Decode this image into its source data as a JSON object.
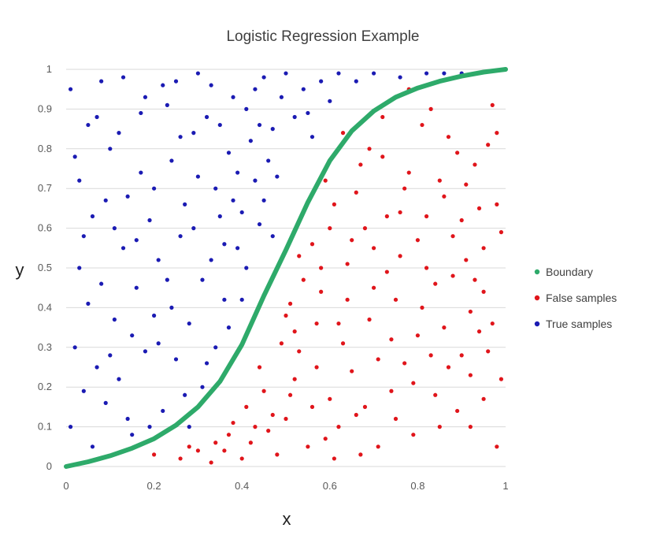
{
  "chart_data": {
    "type": "scatter",
    "title": "Logistic Regression Example",
    "xlabel": "x",
    "ylabel": "y",
    "xlim": [
      0,
      1
    ],
    "ylim": [
      0,
      1
    ],
    "grid": "horizontal",
    "legend": "right",
    "x_ticks": [
      "0",
      "0.2",
      "0.4",
      "0.6",
      "0.8",
      "1"
    ],
    "y_ticks": [
      "0",
      "0.1",
      "0.2",
      "0.3",
      "0.4",
      "0.5",
      "0.6",
      "0.7",
      "0.8",
      "0.9",
      "1"
    ],
    "series": [
      {
        "name": "Boundary",
        "kind": "line",
        "color": "#2eaa6a",
        "x": [
          0,
          0.05,
          0.1,
          0.15,
          0.2,
          0.25,
          0.3,
          0.35,
          0.4,
          0.45,
          0.5,
          0.55,
          0.6,
          0.65,
          0.7,
          0.75,
          0.8,
          0.85,
          0.9,
          0.95,
          1
        ],
        "y": [
          0,
          0.012,
          0.027,
          0.046,
          0.07,
          0.104,
          0.15,
          0.214,
          0.307,
          0.43,
          0.545,
          0.665,
          0.77,
          0.845,
          0.895,
          0.93,
          0.953,
          0.97,
          0.983,
          0.993,
          1
        ]
      },
      {
        "name": "False samples",
        "kind": "scatter",
        "color": "#e0151b",
        "points": [
          [
            0.61,
            0.02
          ],
          [
            0.68,
            0.15
          ],
          [
            0.75,
            0.42
          ],
          [
            0.82,
            0.63
          ],
          [
            0.9,
            0.28
          ],
          [
            0.96,
            0.81
          ],
          [
            0.55,
            0.05
          ],
          [
            0.63,
            0.31
          ],
          [
            0.7,
            0.55
          ],
          [
            0.78,
            0.74
          ],
          [
            0.85,
            0.1
          ],
          [
            0.93,
            0.47
          ],
          [
            0.98,
            0.66
          ],
          [
            0.52,
            0.22
          ],
          [
            0.58,
            0.44
          ],
          [
            0.66,
            0.69
          ],
          [
            0.72,
            0.88
          ],
          [
            0.8,
            0.33
          ],
          [
            0.88,
            0.58
          ],
          [
            0.95,
            0.17
          ],
          [
            0.5,
            0.12
          ],
          [
            0.57,
            0.36
          ],
          [
            0.64,
            0.51
          ],
          [
            0.71,
            0.05
          ],
          [
            0.77,
            0.26
          ],
          [
            0.84,
            0.46
          ],
          [
            0.91,
            0.71
          ],
          [
            0.97,
            0.91
          ],
          [
            0.46,
            0.09
          ],
          [
            0.53,
            0.29
          ],
          [
            0.6,
            0.6
          ],
          [
            0.67,
            0.76
          ],
          [
            0.74,
            0.19
          ],
          [
            0.81,
            0.4
          ],
          [
            0.87,
            0.83
          ],
          [
            0.94,
            0.34
          ],
          [
            0.99,
            0.22
          ],
          [
            0.42,
            0.06
          ],
          [
            0.49,
            0.31
          ],
          [
            0.56,
            0.56
          ],
          [
            0.62,
            0.1
          ],
          [
            0.69,
            0.37
          ],
          [
            0.76,
            0.64
          ],
          [
            0.83,
            0.9
          ],
          [
            0.89,
            0.14
          ],
          [
            0.95,
            0.55
          ],
          [
            0.38,
            0.11
          ],
          [
            0.45,
            0.19
          ],
          [
            0.51,
            0.41
          ],
          [
            0.59,
            0.72
          ],
          [
            0.65,
            0.24
          ],
          [
            0.73,
            0.49
          ],
          [
            0.79,
            0.08
          ],
          [
            0.86,
            0.68
          ],
          [
            0.92,
            0.39
          ],
          [
            0.98,
            0.05
          ],
          [
            0.34,
            0.06
          ],
          [
            0.41,
            0.15
          ],
          [
            0.48,
            0.03
          ],
          [
            0.54,
            0.47
          ],
          [
            0.61,
            0.66
          ],
          [
            0.67,
            0.03
          ],
          [
            0.74,
            0.32
          ],
          [
            0.8,
            0.57
          ],
          [
            0.87,
            0.25
          ],
          [
            0.93,
            0.76
          ],
          [
            0.3,
            0.04
          ],
          [
            0.37,
            0.08
          ],
          [
            0.44,
            0.25
          ],
          [
            0.5,
            0.38
          ],
          [
            0.57,
            0.25
          ],
          [
            0.63,
            0.84
          ],
          [
            0.7,
            0.45
          ],
          [
            0.77,
            0.7
          ],
          [
            0.84,
            0.18
          ],
          [
            0.9,
            0.62
          ],
          [
            0.96,
            0.29
          ],
          [
            0.26,
            0.02
          ],
          [
            0.33,
            0.01
          ],
          [
            0.4,
            0.02
          ],
          [
            0.47,
            0.13
          ],
          [
            0.53,
            0.53
          ],
          [
            0.6,
            0.17
          ],
          [
            0.68,
            0.6
          ],
          [
            0.75,
            0.12
          ],
          [
            0.82,
            0.5
          ],
          [
            0.89,
            0.79
          ],
          [
            0.95,
            0.44
          ],
          [
            0.2,
            0.03
          ],
          [
            0.28,
            0.05
          ],
          [
            0.36,
            0.04
          ],
          [
            0.43,
            0.1
          ],
          [
            0.51,
            0.18
          ],
          [
            0.58,
            0.5
          ],
          [
            0.64,
            0.42
          ],
          [
            0.72,
            0.78
          ],
          [
            0.79,
            0.21
          ],
          [
            0.86,
            0.35
          ],
          [
            0.92,
            0.1
          ],
          [
            0.99,
            0.59
          ],
          [
            0.66,
            0.13
          ],
          [
            0.73,
            0.63
          ],
          [
            0.81,
            0.86
          ],
          [
            0.88,
            0.48
          ],
          [
            0.94,
            0.65
          ],
          [
            0.56,
            0.15
          ],
          [
            0.62,
            0.36
          ],
          [
            0.69,
            0.8
          ],
          [
            0.76,
            0.53
          ],
          [
            0.83,
            0.28
          ],
          [
            0.91,
            0.52
          ],
          [
            0.97,
            0.36
          ],
          [
            0.52,
            0.34
          ],
          [
            0.59,
            0.07
          ],
          [
            0.65,
            0.57
          ],
          [
            0.71,
            0.27
          ],
          [
            0.78,
            0.95
          ],
          [
            0.85,
            0.72
          ],
          [
            0.92,
            0.23
          ],
          [
            0.98,
            0.84
          ]
        ]
      },
      {
        "name": "True samples",
        "kind": "scatter",
        "color": "#1b1bb3",
        "points": [
          [
            0.01,
            0.95
          ],
          [
            0.03,
            0.72
          ],
          [
            0.05,
            0.41
          ],
          [
            0.07,
            0.88
          ],
          [
            0.09,
            0.16
          ],
          [
            0.11,
            0.6
          ],
          [
            0.13,
            0.98
          ],
          [
            0.15,
            0.33
          ],
          [
            0.17,
            0.74
          ],
          [
            0.19,
            0.1
          ],
          [
            0.21,
            0.52
          ],
          [
            0.23,
            0.91
          ],
          [
            0.25,
            0.27
          ],
          [
            0.27,
            0.66
          ],
          [
            0.29,
            0.84
          ],
          [
            0.31,
            0.47
          ],
          [
            0.33,
            0.96
          ],
          [
            0.35,
            0.63
          ],
          [
            0.37,
            0.79
          ],
          [
            0.39,
            0.55
          ],
          [
            0.41,
            0.9
          ],
          [
            0.43,
            0.72
          ],
          [
            0.45,
            0.98
          ],
          [
            0.47,
            0.85
          ],
          [
            0.49,
            0.93
          ],
          [
            0.02,
            0.3
          ],
          [
            0.04,
            0.58
          ],
          [
            0.06,
            0.05
          ],
          [
            0.08,
            0.46
          ],
          [
            0.1,
            0.8
          ],
          [
            0.12,
            0.22
          ],
          [
            0.14,
            0.68
          ],
          [
            0.16,
            0.45
          ],
          [
            0.18,
            0.93
          ],
          [
            0.2,
            0.38
          ],
          [
            0.22,
            0.14
          ],
          [
            0.24,
            0.77
          ],
          [
            0.26,
            0.58
          ],
          [
            0.28,
            0.36
          ],
          [
            0.3,
            0.99
          ],
          [
            0.32,
            0.26
          ],
          [
            0.34,
            0.7
          ],
          [
            0.36,
            0.42
          ],
          [
            0.38,
            0.93
          ],
          [
            0.4,
            0.64
          ],
          [
            0.42,
            0.82
          ],
          [
            0.44,
            0.61
          ],
          [
            0.46,
            0.77
          ],
          [
            0.5,
            0.99
          ],
          [
            0.52,
            0.88
          ],
          [
            0.54,
            0.95
          ],
          [
            0.56,
            0.83
          ],
          [
            0.58,
            0.97
          ],
          [
            0.6,
            0.92
          ],
          [
            0.62,
            0.99
          ],
          [
            0.01,
            0.1
          ],
          [
            0.03,
            0.5
          ],
          [
            0.05,
            0.86
          ],
          [
            0.07,
            0.25
          ],
          [
            0.09,
            0.67
          ],
          [
            0.11,
            0.37
          ],
          [
            0.13,
            0.55
          ],
          [
            0.15,
            0.08
          ],
          [
            0.17,
            0.89
          ],
          [
            0.19,
            0.62
          ],
          [
            0.21,
            0.31
          ],
          [
            0.23,
            0.47
          ],
          [
            0.25,
            0.97
          ],
          [
            0.27,
            0.18
          ],
          [
            0.29,
            0.6
          ],
          [
            0.31,
            0.2
          ],
          [
            0.33,
            0.52
          ],
          [
            0.35,
            0.86
          ],
          [
            0.37,
            0.35
          ],
          [
            0.39,
            0.74
          ],
          [
            0.41,
            0.5
          ],
          [
            0.43,
            0.95
          ],
          [
            0.45,
            0.67
          ],
          [
            0.47,
            0.58
          ],
          [
            0.02,
            0.78
          ],
          [
            0.04,
            0.19
          ],
          [
            0.06,
            0.63
          ],
          [
            0.08,
            0.97
          ],
          [
            0.1,
            0.28
          ],
          [
            0.12,
            0.84
          ],
          [
            0.14,
            0.12
          ],
          [
            0.16,
            0.57
          ],
          [
            0.18,
            0.29
          ],
          [
            0.2,
            0.7
          ],
          [
            0.22,
            0.96
          ],
          [
            0.24,
            0.4
          ],
          [
            0.26,
            0.83
          ],
          [
            0.28,
            0.1
          ],
          [
            0.3,
            0.73
          ],
          [
            0.32,
            0.88
          ],
          [
            0.34,
            0.3
          ],
          [
            0.36,
            0.56
          ],
          [
            0.38,
            0.67
          ],
          [
            0.4,
            0.42
          ],
          [
            0.44,
            0.86
          ],
          [
            0.48,
            0.73
          ],
          [
            0.55,
            0.89
          ],
          [
            0.66,
            0.97
          ],
          [
            0.7,
            0.99
          ],
          [
            0.76,
            0.98
          ],
          [
            0.82,
            0.99
          ],
          [
            0.86,
            0.99
          ],
          [
            0.9,
            0.99
          ]
        ]
      }
    ]
  }
}
